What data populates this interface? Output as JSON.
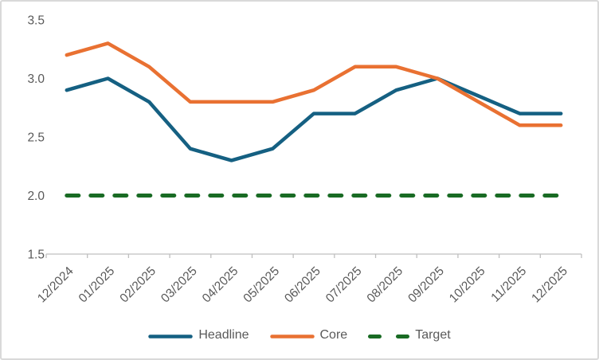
{
  "chart_data": {
    "type": "line",
    "title": "",
    "xlabel": "",
    "ylabel": "",
    "categories": [
      "12/2024",
      "01/2025",
      "02/2025",
      "03/2025",
      "04/2025",
      "05/2025",
      "06/2025",
      "07/2025",
      "08/2025",
      "09/2025",
      "10/2025",
      "11/2025",
      "12/2025"
    ],
    "series": [
      {
        "name": "Headline",
        "color": "#156082",
        "style": "solid",
        "values": [
          2.9,
          3.0,
          2.8,
          2.4,
          2.3,
          2.4,
          2.7,
          2.7,
          2.9,
          3.0,
          2.85,
          2.7,
          2.7
        ]
      },
      {
        "name": "Core",
        "color": "#E97132",
        "style": "solid",
        "values": [
          3.2,
          3.3,
          3.1,
          2.8,
          2.8,
          2.8,
          2.9,
          3.1,
          3.1,
          3.0,
          2.8,
          2.6,
          2.6
        ]
      },
      {
        "name": "Target",
        "color": "#196B24",
        "style": "dashed",
        "values": [
          2.0,
          2.0,
          2.0,
          2.0,
          2.0,
          2.0,
          2.0,
          2.0,
          2.0,
          2.0,
          2.0,
          2.0,
          2.0
        ]
      }
    ],
    "ylim": [
      1.5,
      3.5
    ],
    "yticks": [
      "1.5",
      "2.0",
      "2.5",
      "3.0",
      "3.5"
    ],
    "grid": false,
    "legend_position": "bottom",
    "colors": {
      "axis_line": "#BFBFBF",
      "tick_text": "#595959",
      "legend_text": "#595959",
      "background": "#FFFFFF",
      "frame_border": "#D9D9D9"
    }
  }
}
